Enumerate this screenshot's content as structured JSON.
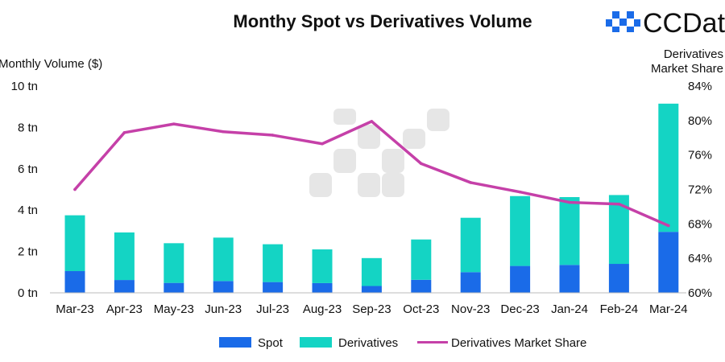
{
  "chart_data": {
    "type": "bar",
    "title": "Monthy Spot vs Derivatives Volume",
    "ylabel": "Monthly Volume ($)",
    "y2label_lines": [
      "Derivatives",
      "Market Share"
    ],
    "categories": [
      "Mar-23",
      "Apr-23",
      "May-23",
      "Jun-23",
      "Jul-23",
      "Aug-23",
      "Sep-23",
      "Oct-23",
      "Nov-23",
      "Dec-23",
      "Jan-24",
      "Feb-24",
      "Mar-24"
    ],
    "stacked": true,
    "series": [
      {
        "name": "Spot",
        "type": "bar",
        "color": "#1a6be8",
        "values": [
          1.05,
          0.62,
          0.48,
          0.57,
          0.52,
          0.47,
          0.33,
          0.63,
          1.0,
          1.3,
          1.35,
          1.4,
          2.95
        ]
      },
      {
        "name": "Derivatives",
        "type": "bar",
        "color": "#14d4c4",
        "values": [
          2.7,
          2.3,
          1.92,
          2.1,
          1.83,
          1.63,
          1.35,
          1.95,
          2.63,
          3.38,
          3.28,
          3.33,
          6.2
        ]
      },
      {
        "name": "Derivatives Market Share",
        "type": "line",
        "axis": "right",
        "color": "#c540a8",
        "values": [
          72.0,
          78.6,
          79.6,
          78.7,
          78.3,
          77.3,
          79.9,
          75.0,
          72.8,
          71.7,
          70.5,
          70.3,
          67.8
        ]
      }
    ],
    "y_ticks": [
      "0 tn",
      "2 tn",
      "4 tn",
      "6 tn",
      "8 tn",
      "10 tn"
    ],
    "ylim": [
      0,
      10
    ],
    "y2_ticks": [
      "60%",
      "64%",
      "68%",
      "72%",
      "76%",
      "80%",
      "84%"
    ],
    "y2lim": [
      60,
      84
    ],
    "grid": false,
    "legend_position": "bottom"
  },
  "logo": {
    "text": "CCData",
    "accent": "#1a6be8"
  }
}
